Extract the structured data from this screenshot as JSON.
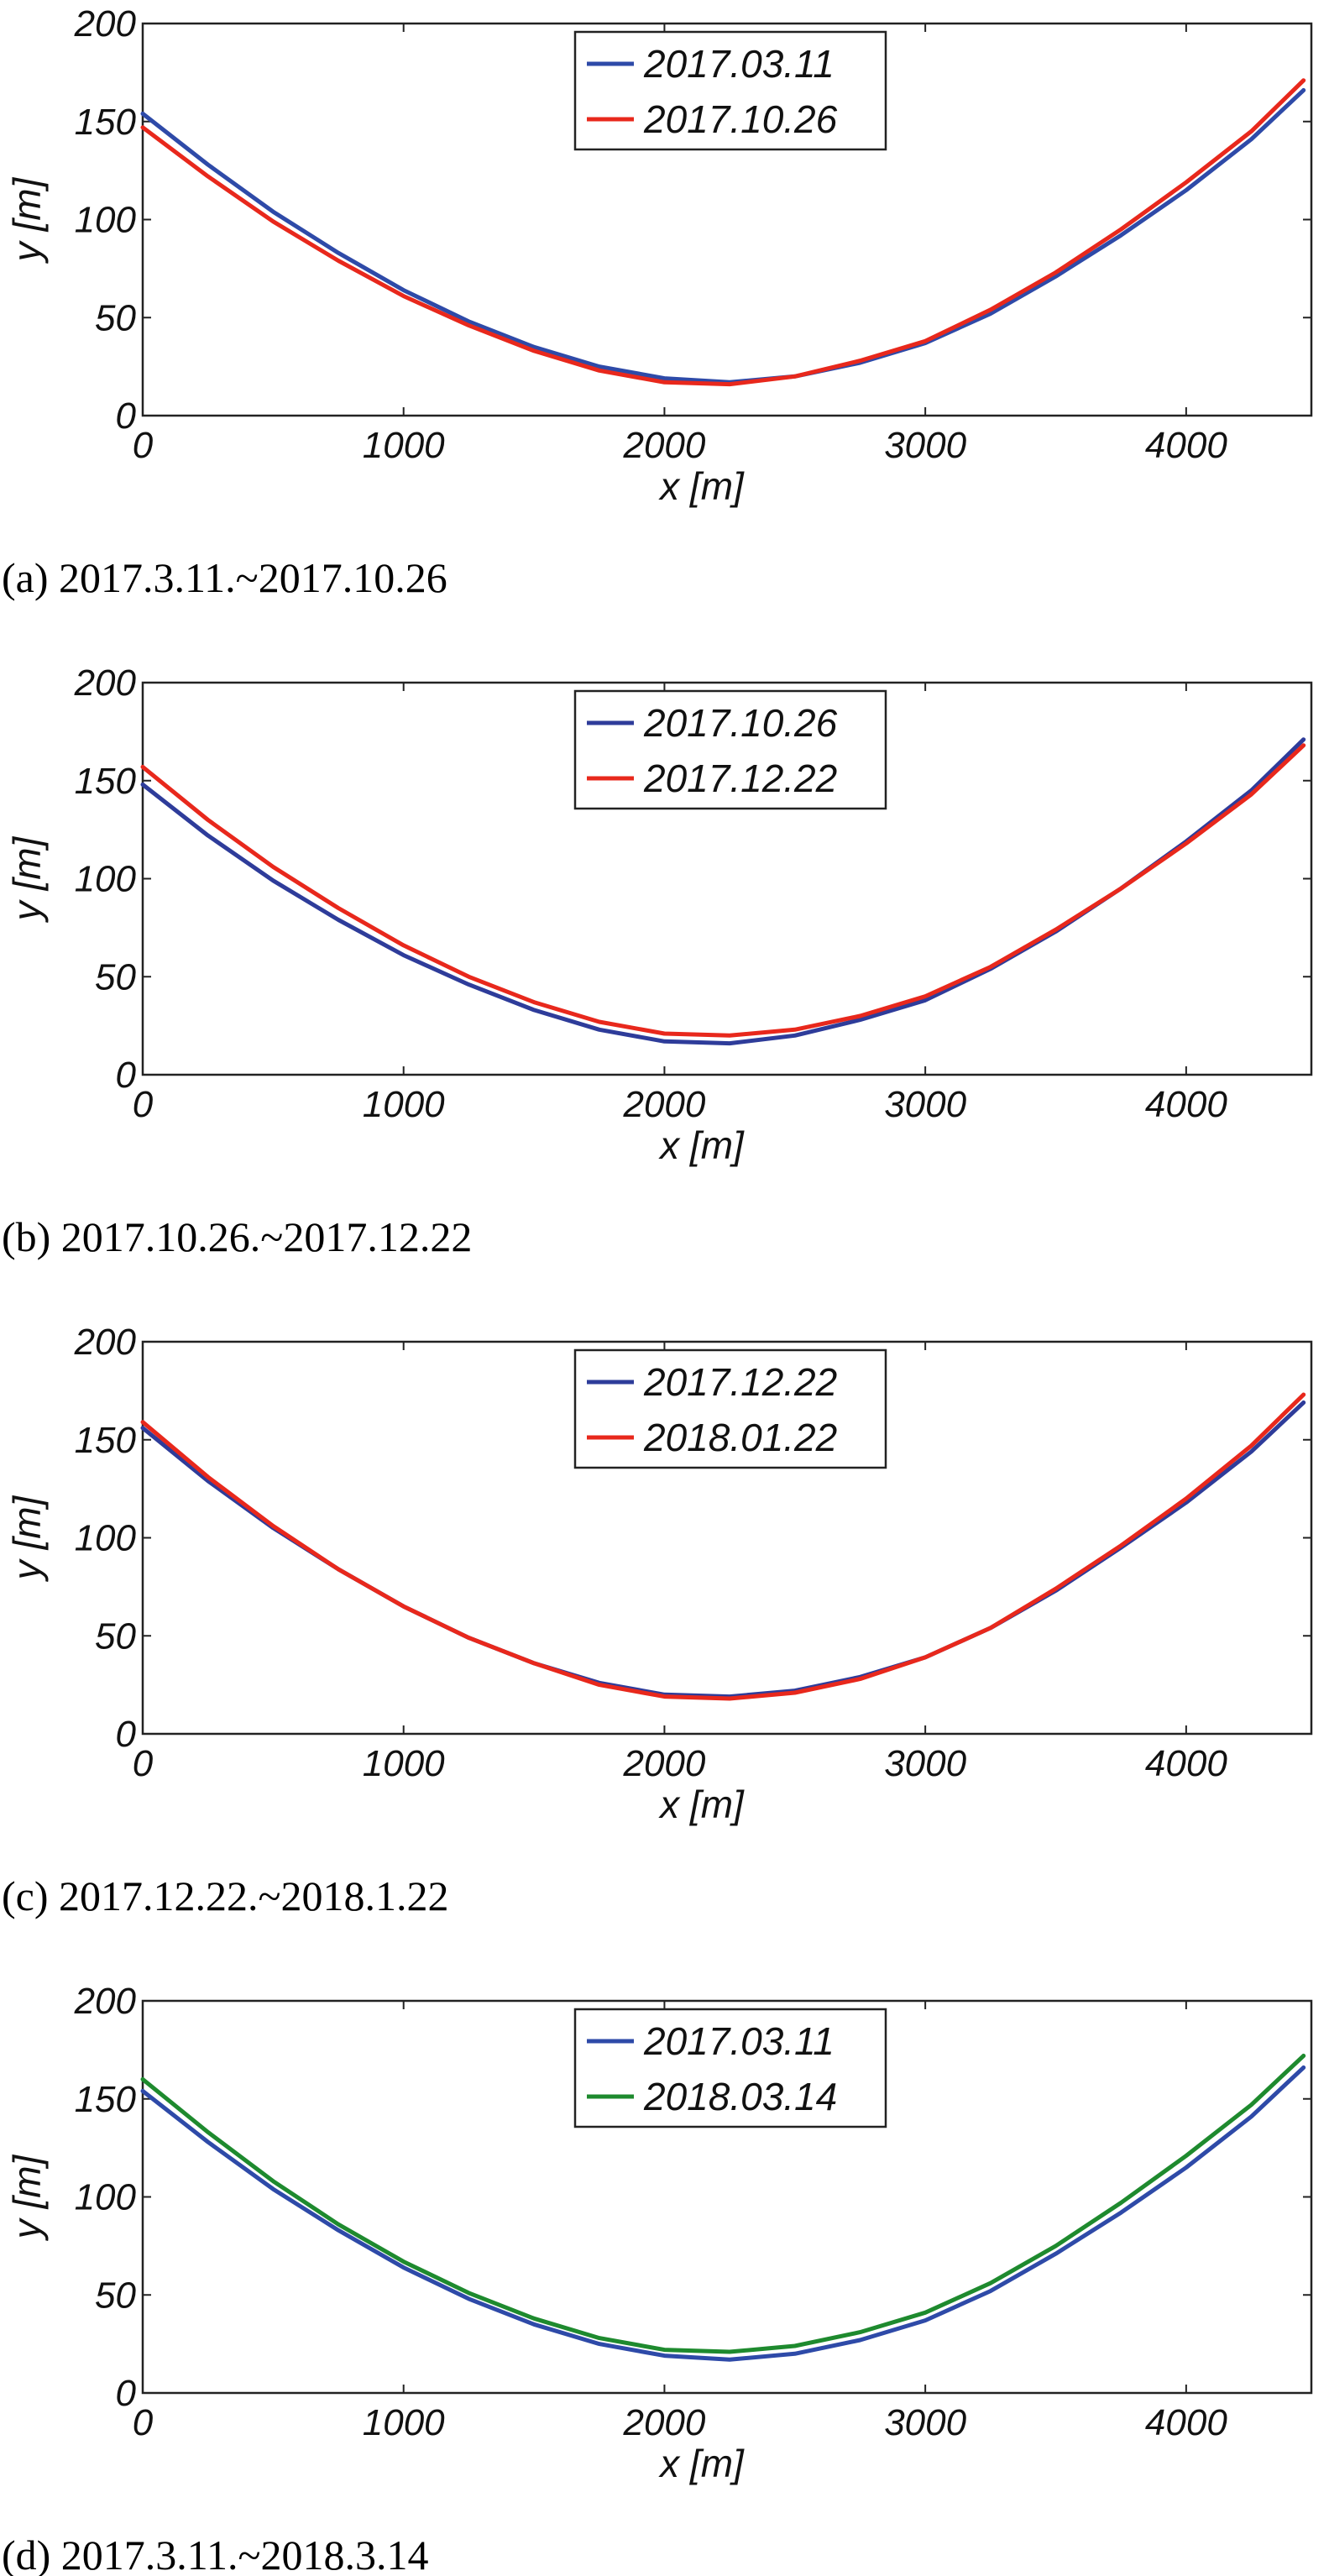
{
  "chart_data": [
    {
      "type": "line",
      "caption": "(a) 2017.3.11.~2017.10.26",
      "xlabel": "x [m]",
      "ylabel": "y [m]",
      "xlim": [
        0,
        4480
      ],
      "ylim": [
        0,
        200
      ],
      "xticks": [
        0,
        1000,
        2000,
        3000,
        4000
      ],
      "yticks": [
        0,
        50,
        100,
        150,
        200
      ],
      "grid": false,
      "legend": "top-center",
      "series": [
        {
          "name": "2017.03.11",
          "color": "#2e4aa8",
          "x": [
            0,
            250,
            500,
            750,
            1000,
            1250,
            1500,
            1750,
            2000,
            2250,
            2500,
            2750,
            3000,
            3250,
            3500,
            3750,
            4000,
            4250,
            4450
          ],
          "y": [
            154,
            128,
            104,
            83,
            64,
            48,
            35,
            25,
            19,
            17,
            20,
            27,
            37,
            52,
            71,
            92,
            115,
            141,
            166
          ]
        },
        {
          "name": "2017.10.26",
          "color": "#e8281c",
          "x": [
            0,
            250,
            500,
            750,
            1000,
            1250,
            1500,
            1750,
            2000,
            2250,
            2500,
            2750,
            3000,
            3250,
            3500,
            3750,
            4000,
            4250,
            4450
          ],
          "y": [
            147,
            122,
            99,
            79,
            61,
            46,
            33,
            23,
            17,
            16,
            20,
            28,
            38,
            54,
            73,
            95,
            119,
            145,
            171
          ]
        }
      ]
    },
    {
      "type": "line",
      "caption": "(b) 2017.10.26.~2017.12.22",
      "xlabel": "x [m]",
      "ylabel": "y [m]",
      "xlim": [
        0,
        4480
      ],
      "ylim": [
        0,
        200
      ],
      "xticks": [
        0,
        1000,
        2000,
        3000,
        4000
      ],
      "yticks": [
        0,
        50,
        100,
        150,
        200
      ],
      "grid": false,
      "legend": "top-center",
      "series": [
        {
          "name": "2017.10.26",
          "color": "#2e3c9a",
          "x": [
            0,
            250,
            500,
            750,
            1000,
            1250,
            1500,
            1750,
            2000,
            2250,
            2500,
            2750,
            3000,
            3250,
            3500,
            3750,
            4000,
            4250,
            4450
          ],
          "y": [
            148,
            122,
            99,
            79,
            61,
            46,
            33,
            23,
            17,
            16,
            20,
            28,
            38,
            54,
            73,
            95,
            119,
            145,
            171
          ]
        },
        {
          "name": "2017.12.22",
          "color": "#e8281c",
          "x": [
            0,
            250,
            500,
            750,
            1000,
            1250,
            1500,
            1750,
            2000,
            2250,
            2500,
            2750,
            3000,
            3250,
            3500,
            3750,
            4000,
            4250,
            4450
          ],
          "y": [
            157,
            130,
            106,
            85,
            66,
            50,
            37,
            27,
            21,
            20,
            23,
            30,
            40,
            55,
            74,
            95,
            118,
            143,
            168
          ]
        }
      ]
    },
    {
      "type": "line",
      "caption": "(c) 2017.12.22.~2018.1.22",
      "xlabel": "x [m]",
      "ylabel": "y [m]",
      "xlim": [
        0,
        4480
      ],
      "ylim": [
        0,
        200
      ],
      "xticks": [
        0,
        1000,
        2000,
        3000,
        4000
      ],
      "yticks": [
        0,
        50,
        100,
        150,
        200
      ],
      "grid": false,
      "legend": "top-center",
      "series": [
        {
          "name": "2017.12.22",
          "color": "#2e3c9a",
          "x": [
            0,
            250,
            500,
            750,
            1000,
            1250,
            1500,
            1750,
            2000,
            2250,
            2500,
            2750,
            3000,
            3250,
            3500,
            3750,
            4000,
            4250,
            4450
          ],
          "y": [
            156,
            129,
            105,
            84,
            65,
            49,
            36,
            26,
            20,
            19,
            22,
            29,
            39,
            54,
            73,
            95,
            118,
            144,
            169
          ]
        },
        {
          "name": "2018.01.22",
          "color": "#e8281c",
          "x": [
            0,
            250,
            500,
            750,
            1000,
            1250,
            1500,
            1750,
            2000,
            2250,
            2500,
            2750,
            3000,
            3250,
            3500,
            3750,
            4000,
            4250,
            4450
          ],
          "y": [
            159,
            131,
            106,
            84,
            65,
            49,
            36,
            25,
            19,
            18,
            21,
            28,
            39,
            54,
            74,
            96,
            120,
            147,
            173
          ]
        }
      ]
    },
    {
      "type": "line",
      "caption": "(d) 2017.3.11.~2018.3.14",
      "xlabel": "x [m]",
      "ylabel": "y [m]",
      "xlim": [
        0,
        4480
      ],
      "ylim": [
        0,
        200
      ],
      "xticks": [
        0,
        1000,
        2000,
        3000,
        4000
      ],
      "yticks": [
        0,
        50,
        100,
        150,
        200
      ],
      "grid": false,
      "legend": "top-center",
      "series": [
        {
          "name": "2017.03.11",
          "color": "#2e4aa8",
          "x": [
            0,
            250,
            500,
            750,
            1000,
            1250,
            1500,
            1750,
            2000,
            2250,
            2500,
            2750,
            3000,
            3250,
            3500,
            3750,
            4000,
            4250,
            4450
          ],
          "y": [
            154,
            128,
            104,
            83,
            64,
            48,
            35,
            25,
            19,
            17,
            20,
            27,
            37,
            52,
            71,
            92,
            115,
            141,
            166
          ]
        },
        {
          "name": "2018.03.14",
          "color": "#1e8a2e",
          "x": [
            0,
            250,
            500,
            750,
            1000,
            1250,
            1500,
            1750,
            2000,
            2250,
            2500,
            2750,
            3000,
            3250,
            3500,
            3750,
            4000,
            4250,
            4450
          ],
          "y": [
            160,
            133,
            108,
            86,
            67,
            51,
            38,
            28,
            22,
            21,
            24,
            31,
            41,
            56,
            75,
            97,
            121,
            147,
            172
          ]
        }
      ]
    }
  ]
}
